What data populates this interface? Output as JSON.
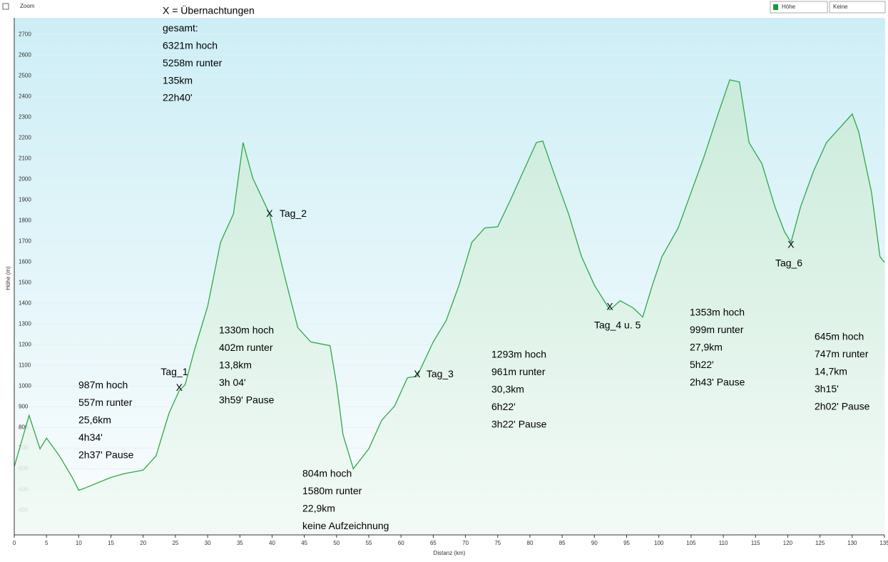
{
  "ui": {
    "zoom_label": "Zoom",
    "dropdown_1": "Höhe",
    "dropdown_2": "Keine"
  },
  "chart_data": {
    "type": "area",
    "x_label": "Distanz (km)",
    "y_label": "Höhe (m)",
    "xlim": [
      0,
      135
    ],
    "ylim": [
      280,
      2780
    ],
    "xticks": [
      0,
      5,
      10,
      15,
      20,
      25,
      30,
      35,
      40,
      45,
      50,
      55,
      60,
      65,
      70,
      75,
      80,
      85,
      90,
      95,
      100,
      105,
      110,
      115,
      120,
      125,
      130,
      135
    ],
    "yticks": [
      400,
      500,
      600,
      700,
      800,
      900,
      1000,
      1100,
      1200,
      1300,
      1400,
      1500,
      1600,
      1700,
      1800,
      1900,
      2000,
      2100,
      2200,
      2300,
      2400,
      2500,
      2600,
      2700
    ],
    "grid": true,
    "color": "#2ea84a",
    "x": [
      0,
      2.3,
      4,
      5,
      7,
      9,
      10,
      11,
      15,
      17,
      20,
      22,
      24,
      25.6,
      26.5,
      28,
      30,
      32,
      34,
      35.5,
      37,
      39.6,
      42,
      44,
      46,
      49,
      50,
      51,
      52.6,
      55,
      57,
      59,
      61,
      62.5,
      65,
      67,
      69,
      71,
      73,
      75,
      77,
      79,
      81,
      82,
      84,
      86,
      88,
      90,
      92.4,
      94,
      96,
      97.5,
      99,
      100.5,
      103,
      105,
      107,
      109,
      111,
      112.5,
      114,
      116,
      118,
      119.5,
      120.5,
      122,
      124,
      126,
      128,
      130,
      131,
      133,
      134.3,
      135
    ],
    "values": [
      610,
      858,
      696,
      748,
      662,
      558,
      496,
      507,
      558,
      576,
      593,
      662,
      868,
      978,
      1006,
      1178,
      1385,
      1695,
      1832,
      2177,
      2005,
      1832,
      1523,
      1282,
      1213,
      1195,
      1006,
      765,
      600,
      696,
      834,
      903,
      1040,
      1047,
      1213,
      1316,
      1488,
      1695,
      1764,
      1770,
      1901,
      2039,
      2177,
      2184,
      2005,
      1832,
      1626,
      1488,
      1368,
      1412,
      1378,
      1333,
      1488,
      1626,
      1764,
      1936,
      2108,
      2297,
      2480,
      2470,
      2177,
      2074,
      1867,
      1746,
      1695,
      1867,
      2039,
      2177,
      2246,
      2315,
      2229,
      1936,
      1626,
      1598
    ],
    "marker_symbol": "X",
    "markers": [
      {
        "label": "Tag_1",
        "x": 25.6,
        "y": 990
      },
      {
        "label": "Tag_2",
        "x": 39.6,
        "y": 1830
      },
      {
        "label": "Tag_3",
        "x": 62.5,
        "y": 1055
      },
      {
        "label": "Tag_4 u. 5",
        "x": 92.4,
        "y": 1380
      },
      {
        "label": "Tag_6",
        "x": 120.5,
        "y": 1680
      }
    ],
    "annotations": [
      [
        "X = Übernachtungen",
        "gesamt:",
        "6321m hoch",
        "5258m runter",
        "135km",
        "22h40'"
      ],
      [
        "987m hoch",
        "557m runter",
        "25,6km",
        "4h34'",
        "2h37' Pause"
      ],
      [
        "1330m hoch",
        "402m runter",
        "13,8km",
        "3h 04'",
        "3h59' Pause"
      ],
      [
        "804m hoch",
        "1580m runter",
        "22,9km",
        "keine Aufzeichnung"
      ],
      [
        "1293m hoch",
        "961m runter",
        "30,3km",
        "6h22'",
        "3h22' Pause"
      ],
      [
        "1353m hoch",
        "999m runter",
        "27,9km",
        "5h22'",
        "2h43' Pause"
      ],
      [
        "645m hoch",
        "747m runter",
        "14,7km",
        "3h15'",
        "2h02' Pause"
      ]
    ]
  }
}
